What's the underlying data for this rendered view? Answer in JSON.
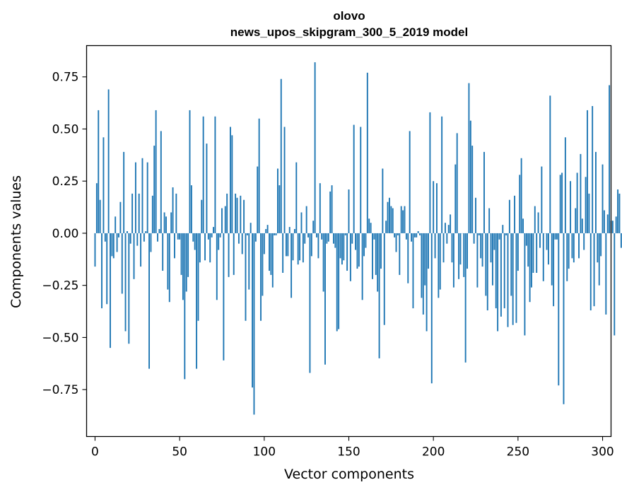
{
  "chart_data": {
    "type": "bar",
    "title_line1": "olovo",
    "title_line2": "news_upos_skipgram_300_5_2019 model",
    "xlabel": "Vector components",
    "ylabel": "Components values",
    "xlim": [
      -5,
      305
    ],
    "ylim": [
      -0.975,
      0.9
    ],
    "xticks": [
      0,
      50,
      100,
      150,
      200,
      250,
      300
    ],
    "xtick_labels": [
      "0",
      "50",
      "100",
      "150",
      "200",
      "250",
      "300"
    ],
    "yticks": [
      -0.75,
      -0.5,
      -0.25,
      0.0,
      0.25,
      0.5,
      0.75
    ],
    "ytick_labels": [
      "−0.75",
      "−0.50",
      "−0.25",
      "0.00",
      "0.25",
      "0.50",
      "0.75"
    ],
    "bar_color": "#1f77b4",
    "x_start": 0,
    "values": [
      -0.16,
      0.24,
      0.59,
      0.16,
      -0.36,
      0.46,
      -0.04,
      -0.34,
      0.69,
      -0.55,
      -0.11,
      -0.12,
      0.08,
      -0.09,
      -0.02,
      0.15,
      -0.29,
      0.39,
      -0.47,
      0.01,
      -0.53,
      -0.05,
      0.19,
      -0.22,
      0.34,
      -0.06,
      0.19,
      -0.16,
      0.36,
      -0.04,
      0.01,
      0.34,
      -0.65,
      -0.09,
      0.18,
      0.42,
      0.59,
      -0.04,
      0.02,
      0.49,
      -0.18,
      0.1,
      0.08,
      -0.27,
      -0.33,
      0.1,
      0.22,
      -0.12,
      0.19,
      -0.03,
      -0.03,
      -0.2,
      -0.32,
      -0.7,
      -0.28,
      -0.21,
      0.59,
      0.23,
      -0.04,
      -0.08,
      -0.65,
      -0.42,
      -0.14,
      0.16,
      0.56,
      -0.13,
      0.43,
      -0.03,
      -0.14,
      -0.02,
      0.03,
      0.56,
      -0.32,
      -0.08,
      -0.02,
      0.12,
      -0.61,
      0.13,
      0.19,
      -0.21,
      0.51,
      0.47,
      -0.2,
      0.19,
      0.17,
      -0.05,
      0.18,
      -0.1,
      0.16,
      -0.42,
      -0.01,
      -0.27,
      0.05,
      -0.74,
      -0.87,
      -0.04,
      0.32,
      0.55,
      -0.42,
      -0.3,
      -0.1,
      0.02,
      0.04,
      -0.18,
      -0.2,
      -0.26,
      -0.01,
      -0.01,
      0.31,
      0.23,
      0.74,
      -0.19,
      0.51,
      -0.11,
      -0.11,
      0.03,
      -0.31,
      -0.13,
      0.02,
      0.34,
      -0.15,
      -0.13,
      0.1,
      -0.14,
      -0.05,
      0.13,
      -0.02,
      -0.67,
      -0.11,
      0.06,
      0.82,
      -0.02,
      -0.12,
      0.24,
      -0.03,
      -0.28,
      -0.63,
      -0.05,
      -0.04,
      0.2,
      0.23,
      -0.05,
      -0.07,
      -0.47,
      -0.46,
      -0.12,
      -0.15,
      -0.13,
      -0.01,
      -0.18,
      0.21,
      -0.23,
      -0.05,
      0.52,
      -0.08,
      -0.17,
      -0.16,
      0.51,
      -0.32,
      -0.11,
      -0.07,
      0.77,
      0.07,
      0.05,
      -0.22,
      -0.03,
      -0.2,
      -0.28,
      -0.6,
      -0.17,
      0.31,
      -0.44,
      0.06,
      0.15,
      0.17,
      0.13,
      0.12,
      -0.02,
      -0.09,
      -0.01,
      -0.2,
      0.13,
      0.11,
      0.13,
      -0.03,
      -0.24,
      0.49,
      -0.04,
      -0.36,
      -0.02,
      -0.02,
      0.01,
      -0.01,
      -0.31,
      -0.39,
      -0.25,
      -0.47,
      -0.17,
      0.58,
      -0.72,
      0.25,
      -0.12,
      0.24,
      -0.31,
      -0.27,
      0.56,
      -0.14,
      0.05,
      -0.05,
      0.04,
      0.09,
      -0.14,
      -0.26,
      0.33,
      0.48,
      -0.22,
      -0.15,
      0.0,
      -0.21,
      -0.62,
      -0.17,
      0.72,
      0.54,
      0.42,
      -0.05,
      0.17,
      -0.26,
      -0.01,
      -0.12,
      -0.16,
      0.39,
      -0.3,
      -0.37,
      0.12,
      -0.14,
      -0.25,
      -0.08,
      -0.36,
      -0.47,
      -0.03,
      -0.4,
      0.04,
      -0.36,
      -0.01,
      -0.45,
      0.16,
      -0.3,
      -0.44,
      0.18,
      -0.43,
      -0.18,
      0.28,
      0.36,
      0.07,
      -0.49,
      -0.06,
      -0.16,
      -0.33,
      -0.26,
      -0.19,
      0.13,
      -0.19,
      0.1,
      -0.07,
      0.32,
      -0.23,
      0.0,
      -0.08,
      -0.15,
      0.66,
      -0.25,
      -0.35,
      -0.03,
      -0.03,
      -0.73,
      0.28,
      0.29,
      -0.82,
      0.46,
      -0.23,
      -0.17,
      0.25,
      -0.12,
      -0.14,
      0.12,
      0.29,
      -0.12,
      0.38,
      0.07,
      -0.08,
      0.27,
      0.59,
      0.19,
      -0.37,
      0.61,
      -0.35,
      0.39,
      -0.14,
      -0.25,
      -0.11,
      0.33,
      0.11,
      -0.39,
      0.09,
      0.71,
      0.06,
      0.06,
      -0.49,
      0.08,
      0.21,
      0.19,
      -0.07
    ]
  }
}
